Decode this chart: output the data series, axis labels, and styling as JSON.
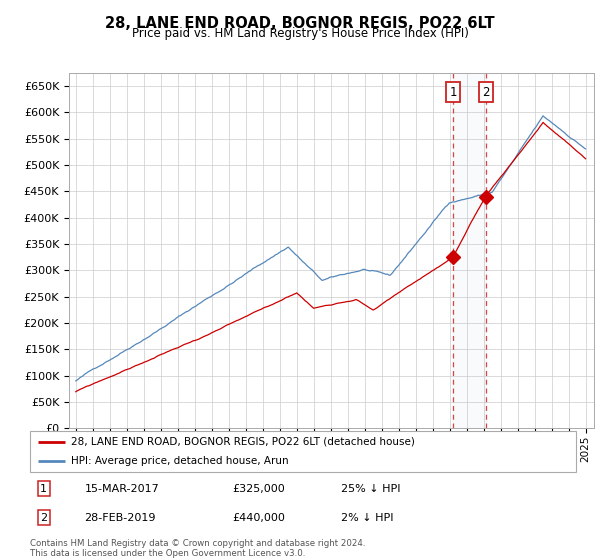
{
  "title": "28, LANE END ROAD, BOGNOR REGIS, PO22 6LT",
  "subtitle": "Price paid vs. HM Land Registry's House Price Index (HPI)",
  "ylabel_ticks": [
    "£0",
    "£50K",
    "£100K",
    "£150K",
    "£200K",
    "£250K",
    "£300K",
    "£350K",
    "£400K",
    "£450K",
    "£500K",
    "£550K",
    "£600K",
    "£650K"
  ],
  "ylim": [
    0,
    675000
  ],
  "ytick_vals": [
    0,
    50000,
    100000,
    150000,
    200000,
    250000,
    300000,
    350000,
    400000,
    450000,
    500000,
    550000,
    600000,
    650000
  ],
  "xstart_year": 1995,
  "xend_year": 2025,
  "transaction1_date": 2017.2,
  "transaction1_price": 325000,
  "transaction2_date": 2019.16,
  "transaction2_price": 440000,
  "legend_line1": "28, LANE END ROAD, BOGNOR REGIS, PO22 6LT (detached house)",
  "legend_line2": "HPI: Average price, detached house, Arun",
  "table_row1": [
    "1",
    "15-MAR-2017",
    "£325,000",
    "25% ↓ HPI"
  ],
  "table_row2": [
    "2",
    "28-FEB-2019",
    "£440,000",
    "2% ↓ HPI"
  ],
  "footer": "Contains HM Land Registry data © Crown copyright and database right 2024.\nThis data is licensed under the Open Government Licence v3.0.",
  "hpi_color": "#5588bb",
  "price_color": "#cc0000",
  "vline_color": "#cc0000",
  "grid_color": "#cccccc",
  "background_color": "#ffffff"
}
